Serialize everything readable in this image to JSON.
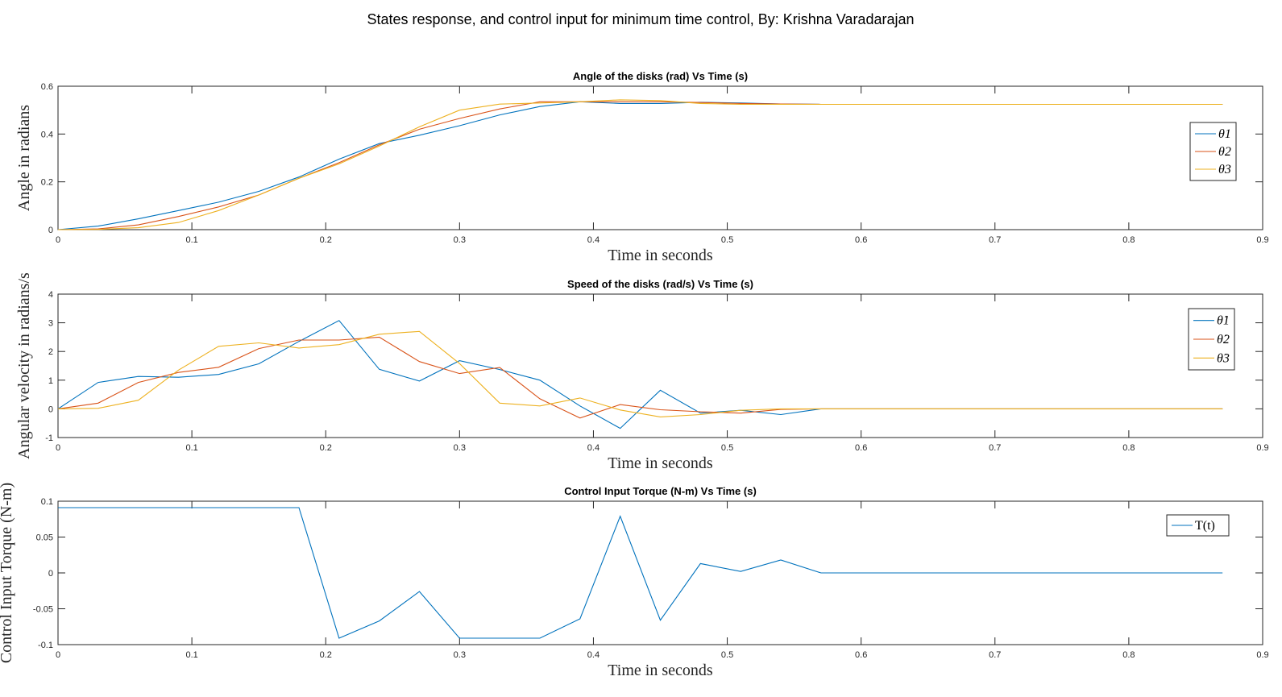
{
  "title": "States response, and control input for minimum time control, By: Krishna Varadarajan",
  "colors": {
    "series1": "#0072BD",
    "series2": "#D95319",
    "series3": "#EDB120"
  },
  "chart_data": [
    {
      "type": "line",
      "title": "Angle of the disks (rad) Vs Time (s)",
      "xlabel": "Time in seconds",
      "ylabel": "Angle in radians",
      "xlim": [
        0,
        0.9
      ],
      "ylim": [
        0,
        0.6
      ],
      "xticks": [
        "0",
        "0.1",
        "0.2",
        "0.3",
        "0.4",
        "0.5",
        "0.6",
        "0.7",
        "0.8",
        "0.9"
      ],
      "yticks": [
        "0",
        "0.2",
        "0.4",
        "0.6"
      ],
      "grid": false,
      "legend_location": "east",
      "x": [
        0,
        0.03,
        0.06,
        0.09,
        0.12,
        0.15,
        0.18,
        0.21,
        0.24,
        0.27,
        0.3,
        0.33,
        0.36,
        0.39,
        0.42,
        0.45,
        0.48,
        0.51,
        0.54,
        0.57,
        0.87
      ],
      "series": [
        {
          "name": "θ1",
          "sub": "1",
          "values": [
            0,
            0.015,
            0.045,
            0.08,
            0.115,
            0.16,
            0.22,
            0.295,
            0.36,
            0.395,
            0.435,
            0.48,
            0.515,
            0.535,
            0.528,
            0.528,
            0.533,
            0.53,
            0.526,
            0.524,
            0.524
          ]
        },
        {
          "name": "θ2",
          "sub": "2",
          "values": [
            0,
            0.003,
            0.02,
            0.055,
            0.095,
            0.145,
            0.215,
            0.28,
            0.355,
            0.42,
            0.465,
            0.505,
            0.535,
            0.535,
            0.535,
            0.535,
            0.532,
            0.528,
            0.526,
            0.524,
            0.524
          ]
        },
        {
          "name": "θ3",
          "sub": "3",
          "values": [
            0,
            0.001,
            0.008,
            0.03,
            0.08,
            0.145,
            0.215,
            0.275,
            0.35,
            0.43,
            0.5,
            0.525,
            0.53,
            0.535,
            0.543,
            0.54,
            0.528,
            0.524,
            0.524,
            0.524,
            0.524
          ]
        }
      ]
    },
    {
      "type": "line",
      "title": "Speed of the disks (rad/s) Vs Time (s)",
      "xlabel": "Time in seconds",
      "ylabel": "Angular velocity in radians/s",
      "xlim": [
        0,
        0.9
      ],
      "ylim": [
        -1,
        4
      ],
      "xticks": [
        "0",
        "0.1",
        "0.2",
        "0.3",
        "0.4",
        "0.5",
        "0.6",
        "0.7",
        "0.8",
        "0.9"
      ],
      "yticks": [
        "-1",
        "0",
        "1",
        "2",
        "3",
        "4"
      ],
      "grid": false,
      "legend_location": "northeast",
      "x": [
        0,
        0.03,
        0.06,
        0.09,
        0.12,
        0.15,
        0.18,
        0.21,
        0.24,
        0.27,
        0.3,
        0.33,
        0.36,
        0.39,
        0.42,
        0.45,
        0.48,
        0.51,
        0.54,
        0.57,
        0.87
      ],
      "series": [
        {
          "name": "θ̇1",
          "sub": "1",
          "values": [
            0,
            0.92,
            1.13,
            1.1,
            1.2,
            1.57,
            2.35,
            3.08,
            1.38,
            0.97,
            1.68,
            1.37,
            1.0,
            0.1,
            -0.68,
            0.65,
            -0.15,
            -0.05,
            -0.2,
            0,
            0
          ]
        },
        {
          "name": "θ̇2",
          "sub": "2",
          "values": [
            0,
            0.2,
            0.92,
            1.27,
            1.45,
            2.1,
            2.4,
            2.4,
            2.5,
            1.65,
            1.23,
            1.44,
            0.35,
            -0.32,
            0.15,
            -0.03,
            -0.1,
            -0.15,
            -0.02,
            0,
            0
          ]
        },
        {
          "name": "θ̇3",
          "sub": "3",
          "values": [
            0,
            0.02,
            0.3,
            1.35,
            2.18,
            2.3,
            2.12,
            2.24,
            2.6,
            2.7,
            1.58,
            0.2,
            0.1,
            0.38,
            -0.04,
            -0.28,
            -0.2,
            -0.05,
            0,
            0,
            0
          ]
        }
      ]
    },
    {
      "type": "line",
      "title": "Control Input Torque (N-m) Vs Time (s)",
      "xlabel": "Time in seconds",
      "ylabel": "Control Input Torque (N-m)",
      "xlim": [
        0,
        0.9
      ],
      "ylim": [
        -0.1,
        0.1
      ],
      "xticks": [
        "0",
        "0.1",
        "0.2",
        "0.3",
        "0.4",
        "0.5",
        "0.6",
        "0.7",
        "0.8",
        "0.9"
      ],
      "yticks": [
        "-0.1",
        "-0.05",
        "0",
        "0.05",
        "0.1"
      ],
      "grid": false,
      "legend_location": "northeast",
      "x": [
        0,
        0.03,
        0.06,
        0.09,
        0.12,
        0.15,
        0.18,
        0.21,
        0.24,
        0.27,
        0.3,
        0.33,
        0.36,
        0.39,
        0.42,
        0.45,
        0.48,
        0.51,
        0.54,
        0.57,
        0.87
      ],
      "series": [
        {
          "name": "T(t)",
          "values": [
            0.091,
            0.091,
            0.091,
            0.091,
            0.091,
            0.091,
            0.091,
            -0.091,
            -0.067,
            -0.026,
            -0.091,
            -0.091,
            -0.091,
            -0.064,
            0.079,
            -0.066,
            0.013,
            0.002,
            0.018,
            0,
            0
          ]
        }
      ]
    }
  ]
}
